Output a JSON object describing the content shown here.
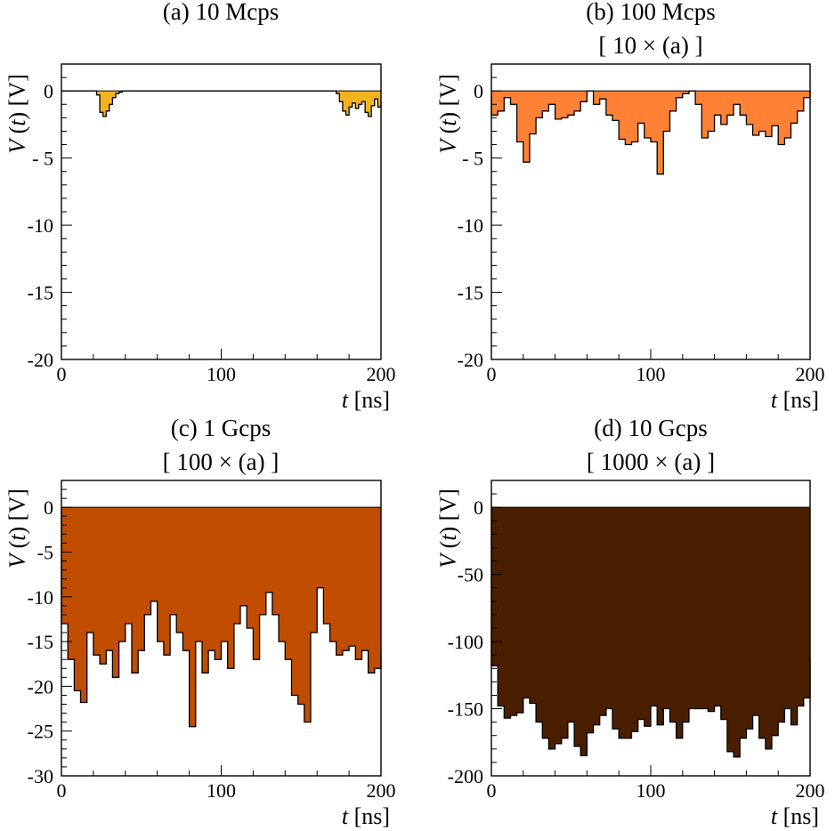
{
  "chart_data": [
    {
      "type": "area",
      "panel": "a",
      "title": "(a) 10 Mcps",
      "subtitle": "",
      "xlabel_var": "t",
      "xlabel_unit": "[ns]",
      "ylabel_var": "V",
      "ylabel_arg": "t",
      "ylabel_unit": "[V]",
      "xlim": [
        0,
        200
      ],
      "ylim": [
        -20,
        2
      ],
      "xticks": [
        0,
        100,
        200
      ],
      "yticks": [
        0,
        -5,
        -10,
        -15,
        -20
      ],
      "ytick_labels": [
        "0",
        "- 5",
        "-10",
        "-15",
        "-20"
      ],
      "color": "#F2B31F",
      "x": [
        0,
        20,
        22,
        24,
        26,
        28,
        30,
        32,
        34,
        36,
        38,
        40,
        170,
        172,
        174,
        176,
        178,
        180,
        182,
        184,
        186,
        188,
        190,
        192,
        194,
        196,
        198,
        200
      ],
      "values": [
        0,
        0,
        -0.3,
        -1.6,
        -1.9,
        -1.5,
        -1.0,
        -0.5,
        -0.2,
        -0.1,
        0,
        0,
        0,
        -0.2,
        -0.8,
        -1.5,
        -1.8,
        -1.2,
        -0.9,
        -1.3,
        -1.0,
        -0.8,
        -1.6,
        -1.9,
        -1.1,
        -0.6,
        -1.2,
        -0.8
      ]
    },
    {
      "type": "area",
      "panel": "b",
      "title": "(b) 100 Mcps",
      "subtitle": "[ 10 × (a) ]",
      "xlabel_var": "t",
      "xlabel_unit": "[ns]",
      "ylabel_var": "V",
      "ylabel_arg": "t",
      "ylabel_unit": "[V]",
      "xlim": [
        0,
        200
      ],
      "ylim": [
        -20,
        2
      ],
      "xticks": [
        0,
        100,
        200
      ],
      "yticks": [
        0,
        -5,
        -10,
        -15,
        -20
      ],
      "ytick_labels": [
        "0",
        "- 5",
        "-10",
        "-15",
        "-20"
      ],
      "color": "#FF8135",
      "x": [
        0,
        4,
        8,
        12,
        16,
        20,
        24,
        28,
        32,
        36,
        40,
        44,
        48,
        52,
        56,
        60,
        64,
        68,
        72,
        76,
        80,
        84,
        88,
        92,
        96,
        100,
        104,
        108,
        112,
        116,
        120,
        124,
        128,
        132,
        136,
        140,
        144,
        148,
        152,
        156,
        160,
        164,
        168,
        172,
        176,
        180,
        184,
        188,
        192,
        196,
        200
      ],
      "values": [
        -1.8,
        -1.5,
        -0.5,
        -1.0,
        -3.8,
        -5.3,
        -3.2,
        -2.0,
        -1.5,
        -1.0,
        -2.1,
        -2.0,
        -1.8,
        -1.5,
        -0.8,
        0,
        -1.0,
        -0.6,
        -1.8,
        -2.2,
        -3.6,
        -4.0,
        -3.8,
        -2.4,
        -3.5,
        -3.8,
        -6.2,
        -3.0,
        -1.5,
        -0.5,
        -0.2,
        0,
        -1.0,
        -3.5,
        -3.0,
        -1.8,
        -2.5,
        -1.8,
        -1.0,
        -1.8,
        -2.5,
        -3.3,
        -3.0,
        -3.4,
        -2.6,
        -4.0,
        -3.5,
        -2.4,
        -1.5,
        -0.5,
        0
      ]
    },
    {
      "type": "area",
      "panel": "c",
      "title": "(c) 1 Gcps",
      "subtitle": "[ 100 × (a) ]",
      "xlabel_var": "t",
      "xlabel_unit": "[ns]",
      "ylabel_var": "V",
      "ylabel_arg": "t",
      "ylabel_unit": "[V]",
      "xlim": [
        0,
        200
      ],
      "ylim": [
        -30,
        3
      ],
      "xticks": [
        0,
        100,
        200
      ],
      "yticks": [
        0,
        -5,
        -10,
        -15,
        -20,
        -25,
        -30
      ],
      "ytick_labels": [
        "0",
        "-5",
        "-10",
        "-15",
        "-20",
        "-25",
        "-30"
      ],
      "color": "#C04D00",
      "x": [
        0,
        4,
        8,
        12,
        16,
        20,
        24,
        28,
        32,
        36,
        40,
        44,
        48,
        52,
        56,
        60,
        64,
        68,
        72,
        76,
        80,
        84,
        88,
        92,
        96,
        100,
        104,
        108,
        112,
        116,
        120,
        124,
        128,
        132,
        136,
        140,
        144,
        148,
        152,
        156,
        160,
        164,
        168,
        172,
        176,
        180,
        184,
        188,
        192,
        196,
        200
      ],
      "values": [
        -13,
        -17,
        -20.5,
        -21.8,
        -14,
        -16.5,
        -17.5,
        -16,
        -19,
        -15,
        -13,
        -18.5,
        -16,
        -12,
        -10.5,
        -15,
        -16.5,
        -12,
        -14,
        -16,
        -24.5,
        -15,
        -18.5,
        -16,
        -17,
        -15,
        -18,
        -13,
        -11,
        -13.5,
        -17,
        -12,
        -9.5,
        -12,
        -15,
        -17,
        -21,
        -22,
        -24,
        -14,
        -9,
        -13,
        -15,
        -16.5,
        -16,
        -15.5,
        -17,
        -16,
        -18.5,
        -18,
        -16
      ]
    },
    {
      "type": "area",
      "panel": "d",
      "title": "(d) 10 Gcps",
      "subtitle": "[ 1000 × (a) ]",
      "xlabel_var": "t",
      "xlabel_unit": "[ns]",
      "ylabel_var": "V",
      "ylabel_arg": "t",
      "ylabel_unit": "[V]",
      "xlim": [
        0,
        200
      ],
      "ylim": [
        -200,
        20
      ],
      "xticks": [
        0,
        100,
        200
      ],
      "yticks": [
        0,
        -50,
        -100,
        -150,
        -200
      ],
      "ytick_labels": [
        "0",
        "-50",
        "-100",
        "-150",
        "-200"
      ],
      "color": "#4A1F00",
      "x": [
        0,
        4,
        8,
        12,
        16,
        20,
        24,
        28,
        32,
        36,
        40,
        44,
        48,
        52,
        56,
        60,
        64,
        68,
        72,
        76,
        80,
        84,
        88,
        92,
        96,
        100,
        104,
        108,
        112,
        116,
        120,
        124,
        128,
        132,
        136,
        140,
        144,
        148,
        152,
        156,
        160,
        164,
        168,
        172,
        176,
        180,
        184,
        188,
        192,
        196,
        200
      ],
      "values": [
        -118,
        -148,
        -157,
        -155,
        -153,
        -142,
        -146,
        -160,
        -172,
        -180,
        -176,
        -172,
        -160,
        -178,
        -185,
        -168,
        -162,
        -155,
        -150,
        -165,
        -172,
        -172,
        -167,
        -158,
        -163,
        -148,
        -162,
        -150,
        -160,
        -172,
        -160,
        -150,
        -150,
        -150,
        -152,
        -148,
        -158,
        -182,
        -186,
        -172,
        -165,
        -155,
        -172,
        -180,
        -170,
        -160,
        -150,
        -162,
        -148,
        -142,
        -112
      ]
    }
  ]
}
